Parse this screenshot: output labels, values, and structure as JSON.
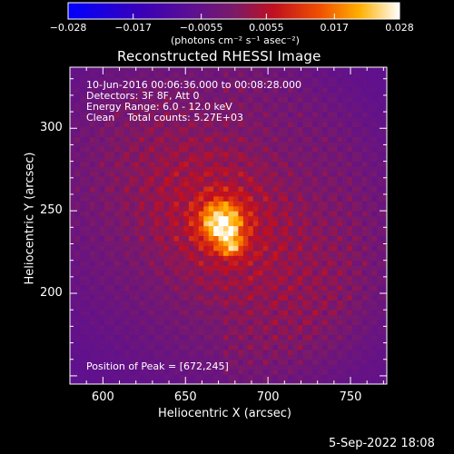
{
  "chart_data": {
    "type": "heatmap",
    "title": "Reconstructed RHESSI Image",
    "xlabel": "Heliocentric X (arcsec)",
    "ylabel": "Heliocentric Y (arcsec)",
    "xlim": [
      580,
      772
    ],
    "ylim": [
      145,
      337
    ],
    "x_ticks": [
      600,
      650,
      700,
      750
    ],
    "y_ticks": [
      200,
      250,
      300
    ],
    "colorbar": {
      "min": -0.028,
      "max": 0.028,
      "tick_values": [
        -0.028,
        -0.017,
        -0.0055,
        0.0055,
        0.017,
        0.028
      ],
      "tick_labels": [
        "−0.028",
        "−0.017",
        "−0.0055",
        "0.0055",
        "0.017",
        "0.028"
      ],
      "units_label": "(photons cm⁻² s⁻¹ asec⁻²)"
    },
    "annotations": [
      "10-Jun-2016 00:06:36.000 to 00:08:28.000",
      "Detectors: 3F 8F, Att 0",
      "Energy Range: 6.0 - 12.0 keV",
      "Clean    Total counts: 5.27E+03"
    ],
    "peak_label": "Position of Peak = [672,245]",
    "peak": [
      672,
      245
    ],
    "peak_value": 0.028,
    "background_value": -0.012,
    "fringe_spacing_arcsec": 10
  },
  "footer": {
    "date": "5-Sep-2022 18:08"
  }
}
